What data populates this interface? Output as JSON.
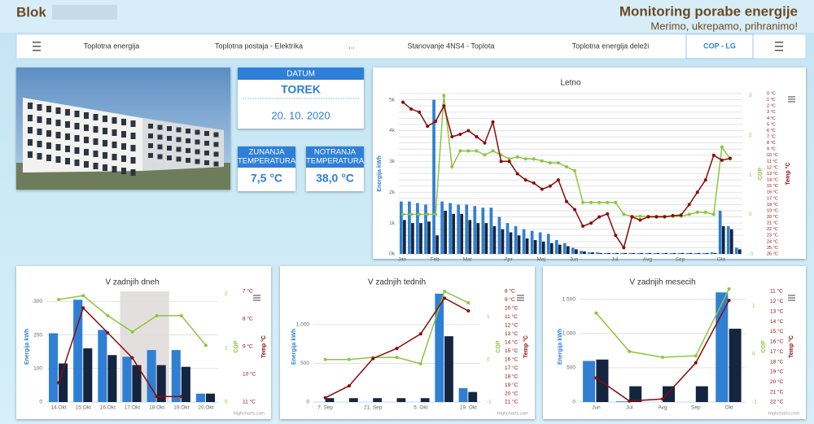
{
  "header": {
    "title": "Blok",
    "heading": "Monitoring porabe energije",
    "slogan": "Merimo, ukrepamo, prihranimo!"
  },
  "nav": {
    "items": [
      "Toplotna energija",
      "Toplotna postaja - Elektrika",
      "...",
      "Stanovanje 4NS4 - Toplota",
      "Toplotna energija deleži",
      "COP - LG"
    ],
    "active": 5
  },
  "date_card": {
    "label": "DATUM",
    "day": "TOREK",
    "date": "20. 10. 2020"
  },
  "temperature_cards": [
    {
      "label": [
        "ZUNANJA",
        "TEMPERATURA"
      ],
      "value": "7,5 °C"
    },
    {
      "label": [
        "NOTRANJA",
        "TEMPERATURA"
      ],
      "value": "38,0 °C"
    }
  ],
  "chart_data": [
    {
      "type": "combo",
      "title": "Letno",
      "categories": [
        "Jan",
        null,
        null,
        null,
        "Feb",
        null,
        null,
        null,
        "Mar",
        null,
        null,
        null,
        null,
        "Apr",
        null,
        null,
        null,
        "Maj",
        null,
        null,
        null,
        "Jun",
        null,
        null,
        null,
        null,
        "Jul",
        null,
        null,
        null,
        "Avg",
        null,
        null,
        null,
        "Sep",
        null,
        null,
        null,
        null,
        "Okt",
        null,
        null
      ],
      "series": [
        {
          "type": "bar",
          "color": "#2f7fd4",
          "values": [
            1700,
            1700,
            1650,
            1600,
            5000,
            1700,
            1650,
            1600,
            1600,
            1550,
            1500,
            1500,
            1200,
            1000,
            900,
            800,
            750,
            700,
            650,
            450,
            350,
            200,
            100,
            50,
            50,
            30,
            30,
            30,
            30,
            30,
            30,
            30,
            30,
            30,
            30,
            30,
            30,
            30,
            50,
            1400,
            900,
            200
          ]
        },
        {
          "type": "bar",
          "color": "#14253f",
          "values": [
            1100,
            1000,
            1000,
            1050,
            600,
            1400,
            1300,
            1300,
            1100,
            1000,
            1000,
            900,
            800,
            700,
            600,
            500,
            450,
            400,
            350,
            300,
            250,
            150,
            80,
            50,
            30,
            30,
            30,
            30,
            30,
            30,
            30,
            30,
            30,
            30,
            30,
            30,
            30,
            30,
            30,
            900,
            800,
            150
          ]
        },
        {
          "type": "line",
          "axis": "y2",
          "color": "#8cc63f",
          "values": [
            0,
            0,
            0,
            0,
            0,
            3.0,
            1.2,
            1.6,
            1.6,
            1.6,
            1.5,
            1.6,
            1.5,
            1.4,
            1.45,
            1.4,
            1.4,
            1.35,
            1.3,
            1.3,
            1.2,
            1.1,
            0.3,
            0.3,
            0.3,
            0.3,
            0.3,
            0,
            -0.05,
            -0.05,
            -0.05,
            -0.05,
            -0.05,
            -0.05,
            -0.05,
            0,
            0.05,
            0.05,
            0,
            1.7,
            1.4,
            null
          ]
        },
        {
          "type": "line",
          "axis": "y3",
          "color": "#8b0a0a",
          "values": [
            1.4,
            2.5,
            3,
            5.3,
            4.5,
            2,
            7,
            6.6,
            6,
            7,
            8,
            4.6,
            11,
            11,
            13,
            14,
            14.5,
            15.5,
            15,
            14,
            17.5,
            18.8,
            21.5,
            21,
            20,
            19.5,
            23,
            25,
            20,
            20.5,
            20,
            20,
            20,
            19.8,
            19.7,
            18,
            16,
            14,
            10,
            10.8,
            10.5,
            null
          ]
        }
      ],
      "ylabel": "Energija kWh",
      "y2label": "COP",
      "y3label": "Temp °C",
      "ylim": [
        0,
        5200
      ],
      "yticks": [
        {
          "value": 0,
          "label": "0k"
        },
        {
          "value": 1000,
          "label": "1k"
        },
        {
          "value": 2000,
          "label": "2k"
        },
        {
          "value": 3000,
          "label": "3k"
        },
        {
          "value": 4000,
          "label": "4k"
        },
        {
          "value": 5000,
          "label": "5k"
        }
      ],
      "y2lim": [
        -1,
        3.05
      ],
      "y2ticks": [
        -1,
        0,
        1,
        2,
        3
      ],
      "y3lim": [
        0,
        26
      ],
      "y3reversed": true,
      "y3ticks": [
        {
          "value": 0,
          "label": "0 °C"
        },
        {
          "value": 1,
          "label": "1 °C"
        },
        {
          "value": 2,
          "label": "2 °C"
        },
        {
          "value": 3,
          "label": "3 °C"
        },
        {
          "value": 4,
          "label": "4 °C"
        },
        {
          "value": 5,
          "label": "5 °C"
        },
        {
          "value": 6,
          "label": "6 °C"
        },
        {
          "value": 7,
          "label": "7 °C"
        },
        {
          "value": 8,
          "label": "8 °C"
        },
        {
          "value": 9,
          "label": "9 °C"
        },
        {
          "value": 10,
          "label": "10 °C"
        },
        {
          "value": 11,
          "label": "11 °C"
        },
        {
          "value": 12,
          "label": "12 °C"
        },
        {
          "value": 13,
          "label": "13 °C"
        },
        {
          "value": 14,
          "label": "14 °C"
        },
        {
          "value": 15,
          "label": "15 °C"
        },
        {
          "value": 16,
          "label": "16 °C"
        },
        {
          "value": 17,
          "label": "17 °C"
        },
        {
          "value": 18,
          "label": "18 °C"
        },
        {
          "value": 19,
          "label": "19 °C"
        },
        {
          "value": 20,
          "label": "20 °C"
        },
        {
          "value": 21,
          "label": "21 °C"
        },
        {
          "value": 22,
          "label": "22 °C"
        },
        {
          "value": 23,
          "label": "23 °C"
        },
        {
          "value": 24,
          "label": "24 °C"
        },
        {
          "value": 25,
          "label": "25 °C"
        },
        {
          "value": 26,
          "label": "26 °C"
        }
      ],
      "grid": "y3"
    },
    {
      "type": "combo",
      "title": "V zadnjih dneh",
      "categories": [
        "14.Okt",
        "15.Okt",
        "16.Okt",
        "17.Okt",
        "18.Okt",
        "19.Okt",
        "20.Okt"
      ],
      "series": [
        {
          "type": "bar",
          "color": "#2f7fd4",
          "values": [
            205,
            305,
            215,
            135,
            155,
            155,
            25
          ]
        },
        {
          "type": "bar",
          "color": "#14253f",
          "values": [
            115,
            160,
            140,
            110,
            110,
            105,
            25
          ]
        },
        {
          "type": "line",
          "axis": "y2",
          "color": "#8cc63f",
          "values": [
            1.9,
            1.97,
            1.6,
            1.3,
            1.6,
            1.6,
            1.05
          ]
        },
        {
          "type": "line",
          "axis": "y3",
          "color": "#8b0a0a",
          "values": [
            10.3,
            7.6,
            8.5,
            9.4,
            10.8,
            10.8,
            null
          ]
        }
      ],
      "plot_band": [
        "17.Okt",
        "18.Okt"
      ],
      "ylabel": "Energija kWh",
      "y2label": "COP",
      "y3label": "Temp °C",
      "ylim": [
        0,
        330
      ],
      "yticks": [
        0,
        100,
        200,
        300
      ],
      "y2lim": [
        0,
        2.05
      ],
      "y2ticks": [
        0,
        1,
        2
      ],
      "y3lim": [
        7,
        11
      ],
      "y3reversed": true,
      "y3ticks": [
        {
          "value": 7,
          "label": "7 °C"
        },
        {
          "value": 8,
          "label": "8 °C"
        },
        {
          "value": 9,
          "label": "9 °C"
        },
        {
          "value": 10,
          "label": "10 °C"
        },
        {
          "value": 11,
          "label": "11 °C"
        }
      ],
      "grid": "y",
      "credits": "Highcharts.com"
    },
    {
      "type": "combo",
      "title": "V zadnjih tednih",
      "categories": [
        "7. Sep",
        null,
        "21. Sep",
        null,
        "5. Okt",
        null,
        "19. Okt"
      ],
      "series": [
        {
          "type": "bar",
          "color": "#2f7fd4",
          "values": [
            0,
            0,
            0,
            0,
            0,
            1400,
            180
          ]
        },
        {
          "type": "bar",
          "color": "#14253f",
          "values": [
            50,
            50,
            50,
            50,
            50,
            850,
            130
          ]
        },
        {
          "type": "line",
          "axis": "y2",
          "color": "#8cc63f",
          "values": [
            0,
            0,
            0.05,
            0.05,
            -0.1,
            1.6,
            1.33
          ]
        },
        {
          "type": "line",
          "axis": "y3",
          "color": "#8b0a0a",
          "values": [
            20.5,
            19.1,
            15.9,
            14.7,
            13,
            8.8,
            10.3
          ]
        }
      ],
      "ylabel": "Energija kWh",
      "y2label": "COP",
      "y3label": "Temp °C",
      "ylim": [
        0,
        1430
      ],
      "yticks": [
        0,
        500,
        {
          "value": 1000,
          "label": "1.000"
        }
      ],
      "y2lim": [
        -1,
        1.6
      ],
      "y2ticks": [
        -1,
        0,
        1
      ],
      "y3lim": [
        8,
        21
      ],
      "y3reversed": true,
      "y3ticks": [
        {
          "value": 8,
          "label": "8 °C"
        },
        {
          "value": 9,
          "label": "9 °C"
        },
        {
          "value": 10,
          "label": "10 °C"
        },
        {
          "value": 11,
          "label": "11 °C"
        },
        {
          "value": 12,
          "label": "12 °C"
        },
        {
          "value": 13,
          "label": "13 °C"
        },
        {
          "value": 14,
          "label": "14 °C"
        },
        {
          "value": 15,
          "label": "15 °C"
        },
        {
          "value": 16,
          "label": "16 °C"
        },
        {
          "value": 17,
          "label": "17 °C"
        },
        {
          "value": 18,
          "label": "18 °C"
        },
        {
          "value": 19,
          "label": "19 °C"
        },
        {
          "value": 20,
          "label": "20 °C"
        },
        {
          "value": 21,
          "label": "21 °C"
        }
      ],
      "grid": "y",
      "credits": "Highcharts.com"
    },
    {
      "type": "combo",
      "title": "V zadnjih mesecih",
      "categories": [
        "Jun",
        "Jul",
        "Avg",
        "Sep",
        "Okt"
      ],
      "series": [
        {
          "type": "bar",
          "color": "#2f7fd4",
          "values": [
            600,
            10,
            0,
            0,
            1600
          ]
        },
        {
          "type": "bar",
          "color": "#14253f",
          "values": [
            620,
            230,
            230,
            230,
            1070
          ]
        },
        {
          "type": "line",
          "axis": "y2",
          "color": "#8cc63f",
          "values": [
            0.85,
            0.05,
            -0.07,
            -0.04,
            1.35
          ]
        },
        {
          "type": "line",
          "axis": "y3",
          "color": "#8b0a0a",
          "values": [
            19.6,
            21.9,
            21.7,
            18.1,
            11.9
          ]
        }
      ],
      "ylabel": "Energija kWh",
      "y2label": "COP",
      "y3label": "Temp °C",
      "ylim": [
        0,
        1615
      ],
      "yticks": [
        0,
        500,
        {
          "value": 1000,
          "label": "1.000"
        },
        {
          "value": 1500,
          "label": "1.500"
        }
      ],
      "y2lim": [
        -1,
        1.3
      ],
      "y2ticks": [
        -1,
        0,
        1
      ],
      "y3lim": [
        11,
        22
      ],
      "y3reversed": true,
      "y3ticks": [
        {
          "value": 11,
          "label": "11 °C"
        },
        {
          "value": 12,
          "label": "12 °C"
        },
        {
          "value": 13,
          "label": "13 °C"
        },
        {
          "value": 14,
          "label": "14 °C"
        },
        {
          "value": 15,
          "label": "15 °C"
        },
        {
          "value": 16,
          "label": "16 °C"
        },
        {
          "value": 17,
          "label": "17 °C"
        },
        {
          "value": 18,
          "label": "18 °C"
        },
        {
          "value": 19,
          "label": "19 °C"
        },
        {
          "value": 20,
          "label": "20 °C"
        },
        {
          "value": 21,
          "label": "21 °C"
        },
        {
          "value": 22,
          "label": "22 °C"
        }
      ],
      "grid": "y",
      "credits": "Highcharts.com"
    }
  ]
}
